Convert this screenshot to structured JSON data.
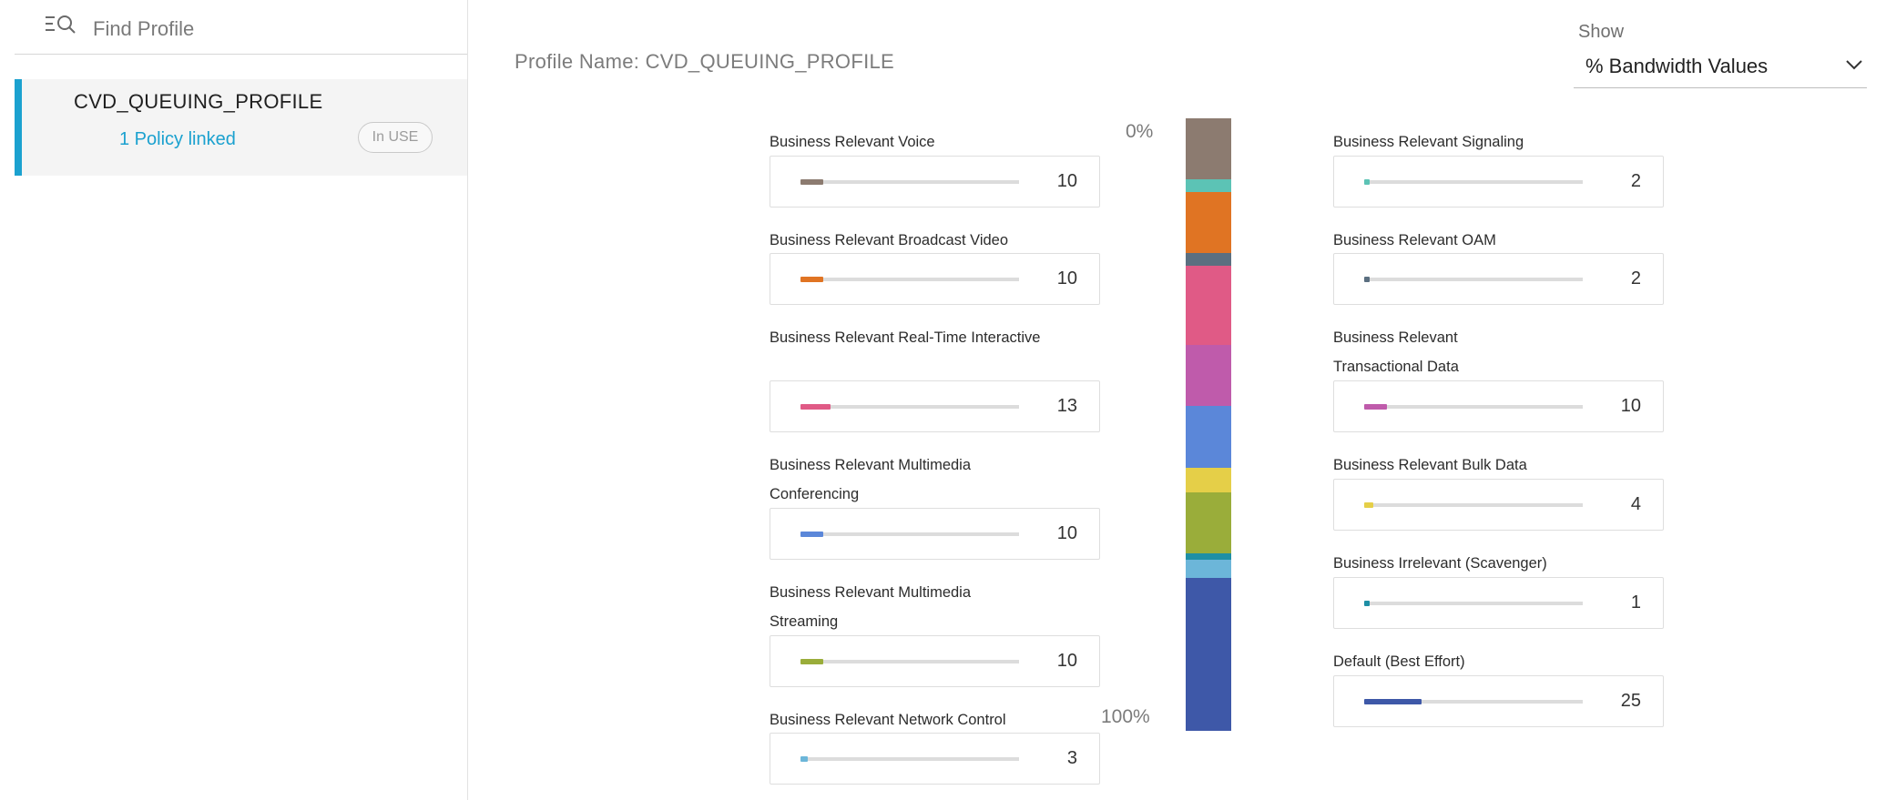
{
  "sidebar": {
    "search": {
      "placeholder": "Find Profile",
      "value": "",
      "icon": "search-list-icon"
    },
    "profile": {
      "name": "CVD_QUEUING_PROFILE",
      "policy_link": "1 Policy linked",
      "badge": "In USE"
    }
  },
  "header": {
    "profile_name": "Profile Name: CVD_QUEUING_PROFILE",
    "show_label": "Show",
    "show_value": "% Bandwidth Values",
    "show_icon": "chevron-down-icon"
  },
  "stack_labels": {
    "top": "0%",
    "bottom": "100%"
  },
  "queues_left": [
    {
      "label": "Business Relevant Voice",
      "value": "10",
      "color": "#8c7b70"
    },
    {
      "label": "Business Relevant Broadcast Video",
      "value": "10",
      "color": "#e07423"
    },
    {
      "label": "Business Relevant Real-Time Interactive",
      "value": "13",
      "color": "#e05a86"
    },
    {
      "label": "Business Relevant Multimedia Conferencing",
      "value": "10",
      "color": "#5b87d9"
    },
    {
      "label": "Business Relevant Multimedia Streaming",
      "value": "10",
      "color": "#9aad3a"
    },
    {
      "label": "Business Relevant Network Control",
      "value": "3",
      "color": "#6cb6d9"
    }
  ],
  "queues_right": [
    {
      "label": "Business Relevant Signaling",
      "value": "2",
      "color": "#5cc3b5"
    },
    {
      "label": "Business Relevant OAM",
      "value": "2",
      "color": "#5b6f80"
    },
    {
      "label": "Business Relevant Transactional Data",
      "value": "10",
      "color": "#bf5bab"
    },
    {
      "label": "Business Relevant Bulk Data",
      "value": "4",
      "color": "#e5cf48"
    },
    {
      "label": "Business Irrelevant (Scavenger)",
      "value": "1",
      "color": "#1e8fa5"
    },
    {
      "label": "Default (Best Effort)",
      "value": "25",
      "color": "#3e58a8"
    }
  ],
  "stack_segments": [
    {
      "name": "voice",
      "value": 10,
      "color": "#8c7b70"
    },
    {
      "name": "signaling",
      "value": 2,
      "color": "#5cc3b5"
    },
    {
      "name": "broadcast-video",
      "value": 10,
      "color": "#e07423"
    },
    {
      "name": "oam",
      "value": 2,
      "color": "#5b6f80"
    },
    {
      "name": "real-time-interactive",
      "value": 13,
      "color": "#e05a86"
    },
    {
      "name": "transactional-data",
      "value": 10,
      "color": "#bf5bab"
    },
    {
      "name": "multimedia-conferencing",
      "value": 10,
      "color": "#5b87d9"
    },
    {
      "name": "bulk-data",
      "value": 4,
      "color": "#e5cf48"
    },
    {
      "name": "multimedia-streaming",
      "value": 10,
      "color": "#9aad3a"
    },
    {
      "name": "scavenger",
      "value": 1,
      "color": "#1e8fa5"
    },
    {
      "name": "network-control",
      "value": 3,
      "color": "#6cb6d9"
    },
    {
      "name": "best-effort",
      "value": 25,
      "color": "#3e58a8"
    }
  ]
}
